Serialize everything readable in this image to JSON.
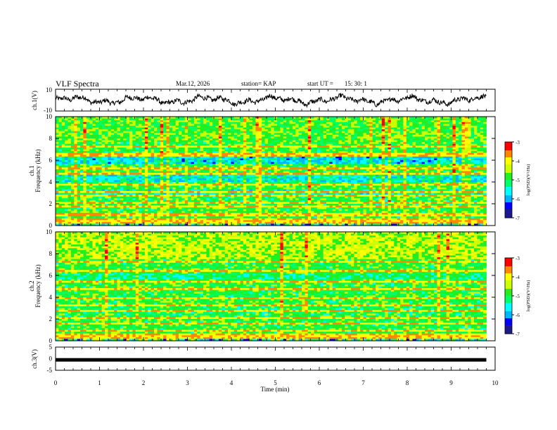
{
  "header": {
    "title": "VLF Spectra",
    "date": "Mar.12, 2026",
    "station": "station= KAP",
    "start_label": "start  UT  =",
    "start_value": "15: 30: 1"
  },
  "colors": {
    "waveform": "#000000",
    "frame": "#000000",
    "colormap": [
      "#000000",
      "#1a1a8a",
      "#0000ff",
      "#00b4ff",
      "#00ffff",
      "#00ff64",
      "#22ee22",
      "#ccff00",
      "#ffff00",
      "#ff8800",
      "#ff0000",
      "#ffffff"
    ]
  },
  "chart_data": [
    {
      "type": "line",
      "name": "ch1-waveform",
      "ylabel": "ch.1(V)",
      "ylim": [
        -10,
        10
      ],
      "y_ticklabels": [
        "10",
        "-10"
      ],
      "xlim": [
        0,
        10
      ],
      "description": "broadband waveform, oscillating roughly between -5 and +5 V over 0-9.8 min"
    },
    {
      "type": "heatmap",
      "name": "ch1-spectrogram",
      "ylabel": "ch.1\nFrequency (kHz)",
      "ylim": [
        0,
        10
      ],
      "y_ticks": [
        0,
        2,
        4,
        6,
        8,
        10
      ],
      "x_extent_min": [
        0,
        9.8
      ],
      "colorbar": {
        "label": "log(PSD)(V²/Hz)",
        "range": [
          -7,
          -3
        ],
        "ticks": [
          -7,
          -6,
          -5,
          -4,
          -3
        ]
      },
      "bands_khz": [
        0.2,
        0.5,
        1.0,
        1.7,
        2.1,
        2.7,
        3.1,
        3.8,
        4.7,
        5.3,
        6.5,
        7.3
      ]
    },
    {
      "type": "heatmap",
      "name": "ch2-spectrogram",
      "ylabel": "ch.2\nFrequency (kHz)",
      "ylim": [
        0,
        10
      ],
      "y_ticks": [
        0,
        2,
        4,
        6,
        8,
        10
      ],
      "x_extent_min": [
        0,
        9.8
      ],
      "colorbar": {
        "label": "log(PSD)(V²/Hz)",
        "range": [
          -7,
          -3
        ],
        "ticks": [
          -7,
          -6,
          -5,
          -4,
          -3
        ]
      },
      "bands_khz": [
        0.2,
        0.5,
        0.9,
        1.6,
        2.1,
        2.8,
        3.2,
        3.9,
        4.8,
        5.4,
        6.4,
        7.3
      ]
    },
    {
      "type": "line",
      "name": "ch3-signal",
      "ylabel": "ch.3(V)",
      "ylim": [
        -5,
        5
      ],
      "y_ticks": [
        -5,
        0,
        5
      ],
      "y_value": -0.5,
      "x_extent_min": [
        0,
        9.8
      ],
      "xlabel": "Time (min)",
      "x_ticks": [
        0,
        1,
        2,
        3,
        4,
        5,
        6,
        7,
        8,
        9,
        10
      ],
      "xlim": [
        0,
        10
      ]
    }
  ]
}
